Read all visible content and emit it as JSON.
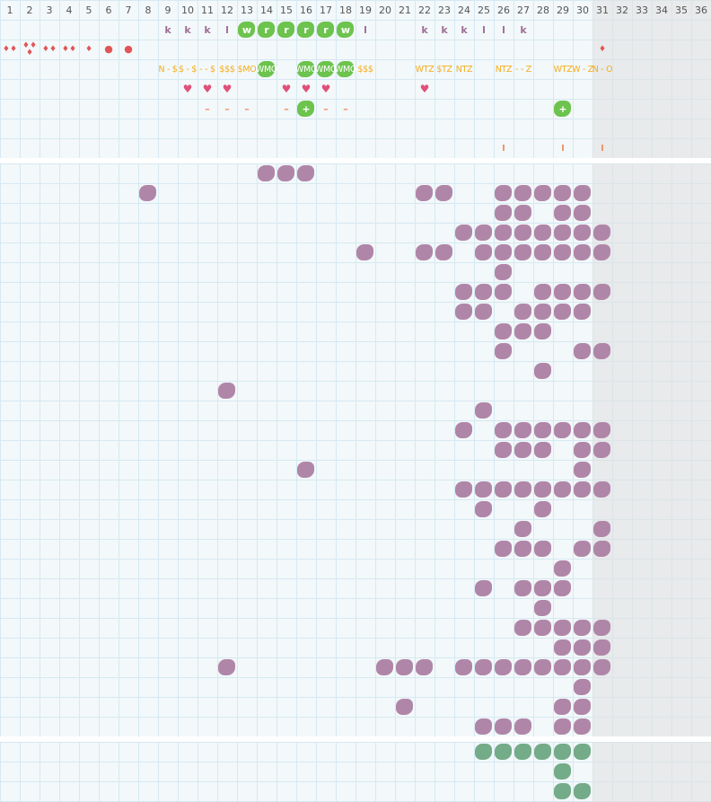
{
  "columns": [
    "1",
    "2",
    "3",
    "4",
    "5",
    "6",
    "7",
    "8",
    "9",
    "10",
    "11",
    "12",
    "13",
    "14",
    "15",
    "16",
    "17",
    "18",
    "19",
    "20",
    "21",
    "22",
    "23",
    "24",
    "25",
    "26",
    "27",
    "28",
    "29",
    "30",
    "31",
    "32",
    "33",
    "34",
    "35",
    "36"
  ],
  "shaded_from_column": 31,
  "colors": {
    "purple": "#b086a8",
    "green": "#6cc34d",
    "teal": "#74ab88",
    "code": "#f5ad1d",
    "drop": "#e05555",
    "heart": "#e0507a"
  },
  "top_rows": [
    {
      "type": "letters",
      "cells": [
        {
          "col": 9,
          "text": "k"
        },
        {
          "col": 10,
          "text": "k"
        },
        {
          "col": 11,
          "text": "k"
        },
        {
          "col": 12,
          "text": "l"
        },
        {
          "col": 13,
          "text": "w",
          "blob": "green"
        },
        {
          "col": 14,
          "text": "r",
          "blob": "green"
        },
        {
          "col": 15,
          "text": "r",
          "blob": "green"
        },
        {
          "col": 16,
          "text": "r",
          "blob": "green"
        },
        {
          "col": 17,
          "text": "r",
          "blob": "green"
        },
        {
          "col": 18,
          "text": "w",
          "blob": "green"
        },
        {
          "col": 19,
          "text": "l"
        },
        {
          "col": 22,
          "text": "k"
        },
        {
          "col": 23,
          "text": "k"
        },
        {
          "col": 24,
          "text": "k"
        },
        {
          "col": 25,
          "text": "l"
        },
        {
          "col": 26,
          "text": "l"
        },
        {
          "col": 27,
          "text": "k"
        }
      ]
    },
    {
      "type": "drops",
      "cells": [
        {
          "col": 1,
          "icon": "drop-icon",
          "count": 2
        },
        {
          "col": 2,
          "icon": "drop-icon",
          "count": 3
        },
        {
          "col": 3,
          "icon": "drop-icon",
          "count": 2
        },
        {
          "col": 4,
          "icon": "drop-icon",
          "count": 2
        },
        {
          "col": 5,
          "icon": "drop-icon",
          "count": 1
        },
        {
          "col": 6,
          "icon": "circle-icon",
          "count": 1
        },
        {
          "col": 7,
          "icon": "circle-icon",
          "count": 1
        },
        {
          "col": 31,
          "icon": "drop-icon",
          "count": 1
        }
      ]
    },
    {
      "type": "codes",
      "cells": [
        {
          "col": 9,
          "text": "N - $"
        },
        {
          "col": 10,
          "text": "$ - $"
        },
        {
          "col": 11,
          "text": "- - $"
        },
        {
          "col": 12,
          "text": "$$$"
        },
        {
          "col": 13,
          "text": "$MO"
        },
        {
          "col": 14,
          "text": "WMO",
          "blob": "green"
        },
        {
          "col": 16,
          "text": "WMO",
          "blob": "green"
        },
        {
          "col": 17,
          "text": "WMO",
          "blob": "green"
        },
        {
          "col": 18,
          "text": "WMO",
          "blob": "green"
        },
        {
          "col": 19,
          "text": "$$$"
        },
        {
          "col": 22,
          "text": "WTZ"
        },
        {
          "col": 23,
          "text": "$TZ"
        },
        {
          "col": 24,
          "text": "NTZ"
        },
        {
          "col": 26,
          "text": "NTZ"
        },
        {
          "col": 27,
          "text": "- - Z"
        },
        {
          "col": 29,
          "text": "WTZ"
        },
        {
          "col": 30,
          "text": "W - Z"
        },
        {
          "col": 31,
          "text": "N - O"
        }
      ]
    },
    {
      "type": "hearts",
      "cells": [
        {
          "col": 10,
          "icon": "heart-icon"
        },
        {
          "col": 11,
          "icon": "heart-icon"
        },
        {
          "col": 12,
          "icon": "heart-icon"
        },
        {
          "col": 15,
          "icon": "heart-icon"
        },
        {
          "col": 16,
          "icon": "heart-icon"
        },
        {
          "col": 17,
          "icon": "heart-icon"
        },
        {
          "col": 22,
          "icon": "heart-icon"
        }
      ]
    },
    {
      "type": "dashes",
      "cells": [
        {
          "col": 11,
          "icon": "dash-icon"
        },
        {
          "col": 12,
          "icon": "dash-icon"
        },
        {
          "col": 13,
          "icon": "dash-icon"
        },
        {
          "col": 15,
          "icon": "dash-icon"
        },
        {
          "col": 16,
          "icon": "plus-icon",
          "blob": "green"
        },
        {
          "col": 17,
          "icon": "dash-icon"
        },
        {
          "col": 18,
          "icon": "dash-icon"
        },
        {
          "col": 29,
          "icon": "plus-icon",
          "blob": "green"
        }
      ]
    },
    {
      "type": "empty",
      "cells": []
    },
    {
      "type": "ticks",
      "cells": [
        {
          "col": 26,
          "icon": "tick-icon"
        },
        {
          "col": 29,
          "icon": "tick-icon"
        },
        {
          "col": 31,
          "icon": "tick-icon"
        }
      ]
    }
  ],
  "main_rows": [
    [
      14,
      15,
      16
    ],
    [
      8,
      22,
      23,
      26,
      27,
      28,
      29,
      30
    ],
    [
      26,
      27,
      29,
      30
    ],
    [
      24,
      25,
      26,
      27,
      28,
      29,
      30,
      31
    ],
    [
      19,
      22,
      23,
      25,
      26,
      27,
      28,
      29,
      30,
      31
    ],
    [
      26
    ],
    [
      24,
      25,
      26,
      28,
      29,
      30,
      31
    ],
    [
      24,
      25,
      27,
      28,
      29,
      30
    ],
    [
      26,
      27,
      28
    ],
    [
      26,
      30,
      31
    ],
    [
      28
    ],
    [
      12
    ],
    [
      25
    ],
    [
      24,
      26,
      27,
      28,
      29,
      30,
      31
    ],
    [
      26,
      27,
      28,
      30,
      31
    ],
    [
      16,
      30
    ],
    [
      24,
      25,
      26,
      27,
      28,
      29,
      30,
      31
    ],
    [
      25,
      28
    ],
    [
      27,
      31
    ],
    [
      26,
      27,
      28,
      30,
      31
    ],
    [
      29
    ],
    [
      25,
      27,
      28,
      29
    ],
    [
      28
    ],
    [
      27,
      28,
      29,
      30,
      31
    ],
    [
      29,
      30,
      31
    ],
    [
      12,
      20,
      21,
      22,
      24,
      25,
      26,
      27,
      28,
      29,
      30,
      31
    ],
    [
      30
    ],
    [
      21,
      29,
      30
    ],
    [
      25,
      26,
      27,
      29,
      30
    ]
  ],
  "bottom_rows": [
    [
      25,
      26,
      27,
      28,
      29,
      30
    ],
    [
      29
    ],
    [
      29,
      30
    ]
  ]
}
